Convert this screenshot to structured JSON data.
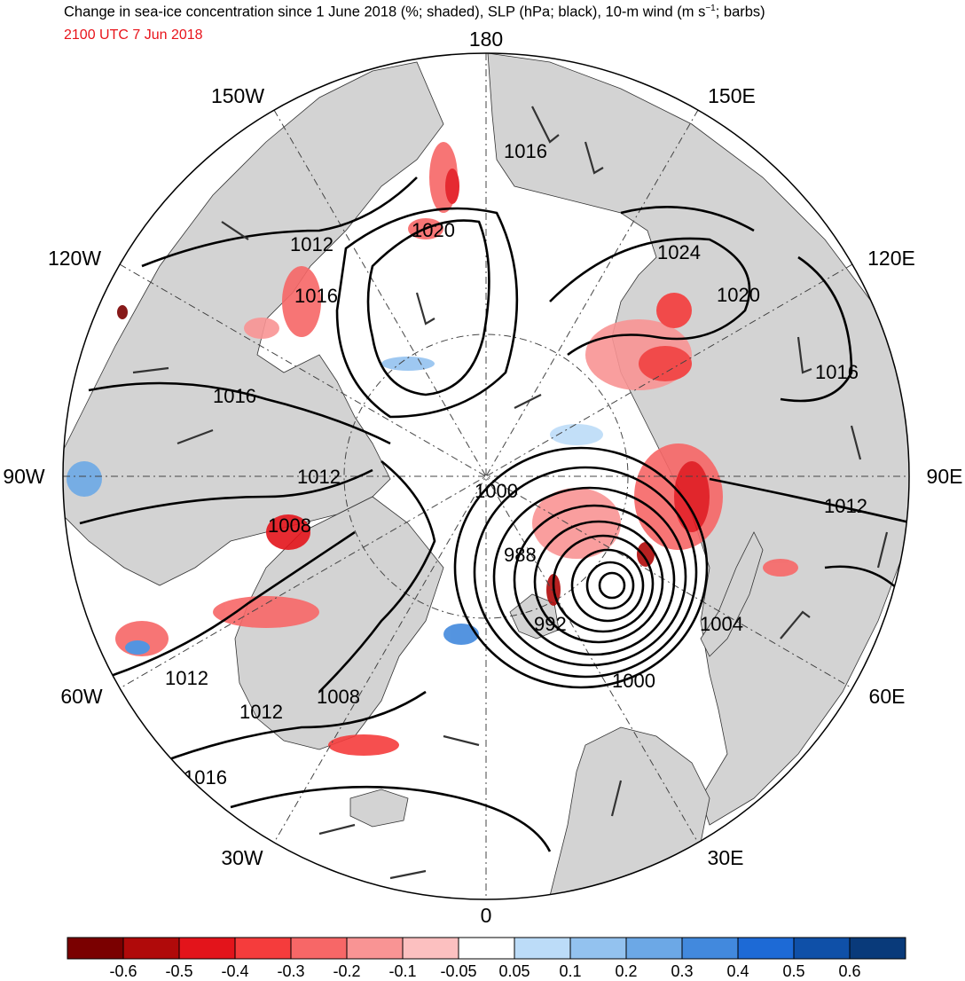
{
  "title": {
    "main_prefix": "Change in sea-ice concentration since 1 June 2018 (%; shaded), SLP (hPa; black), 10-m wind (m s",
    "superscript": "−1",
    "main_suffix": "; barbs)",
    "valid_time": "2100 UTC 7 Jun 2018"
  },
  "longitude_labels": {
    "lon_180": "180",
    "lon_150E": "150E",
    "lon_120E": "120E",
    "lon_90E": "90E",
    "lon_60E": "60E",
    "lon_30E": "30E",
    "lon_0": "0",
    "lon_30W": "30W",
    "lon_60W": "60W",
    "lon_90W": "90W",
    "lon_120W": "120W",
    "lon_150W": "150W"
  },
  "isobar_labels": [
    "1016",
    "1020",
    "1012",
    "1016",
    "1016",
    "1012",
    "1008",
    "1024",
    "1020",
    "1016",
    "1012",
    "1000",
    "988",
    "992",
    "1004",
    "1000",
    "1012",
    "1012",
    "1008",
    "1016"
  ],
  "colorbar": {
    "labels": [
      "-0.6",
      "-0.5",
      "-0.4",
      "-0.3",
      "-0.2",
      "-0.1",
      "-0.05",
      "0.05",
      "0.1",
      "0.2",
      "0.3",
      "0.4",
      "0.5",
      "0.6"
    ],
    "colors": [
      "#7a0000",
      "#b00a0a",
      "#e3141b",
      "#f53c3c",
      "#f76767",
      "#f99494",
      "#fcc0c0",
      "#ffffff",
      "#bcdcf8",
      "#93c2ef",
      "#6ca8e6",
      "#4289dd",
      "#1d6ad6",
      "#0f50a8",
      "#093a7a"
    ]
  },
  "colors": {
    "land": "#d3d3d3",
    "ocean": "#ffffff",
    "isobar": "#000000",
    "barb": "#333333",
    "ice_loss": "#f53c3c",
    "ice_gain": "#6ca8e6"
  }
}
